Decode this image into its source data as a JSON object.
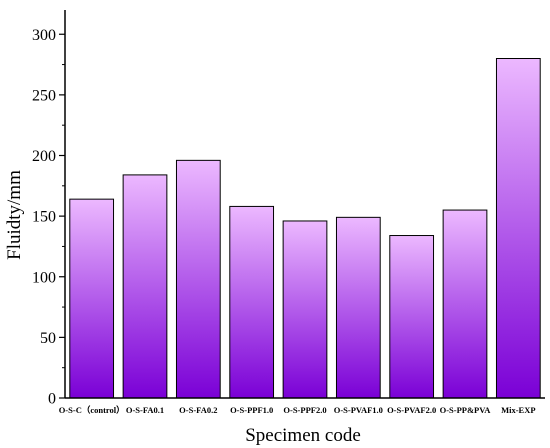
{
  "colors": {
    "bar_top": "#ECB8FF",
    "bar_bottom": "#7A00D6",
    "bar_stroke": "#000000",
    "axis": "#000000"
  },
  "chart_data": {
    "type": "bar",
    "title": "",
    "xlabel": "Specimen code",
    "ylabel": "Fluidty/mm",
    "ylim": [
      0,
      320
    ],
    "yticks": [
      0,
      50,
      100,
      150,
      200,
      250,
      300
    ],
    "grid": false,
    "legend": "none",
    "categories": [
      "O-S-C（control）",
      "O-S-FA0.1",
      "O-S-FA0.2",
      "O-S-PPF1.0",
      "O-S-PPF2.0",
      "O-S-PVAF1.0",
      "O-S-PVAF2.0",
      "O-S-PP&PVA",
      "Mix-EXP"
    ],
    "values": [
      164,
      184,
      196,
      158,
      146,
      149,
      134,
      155,
      280
    ]
  }
}
